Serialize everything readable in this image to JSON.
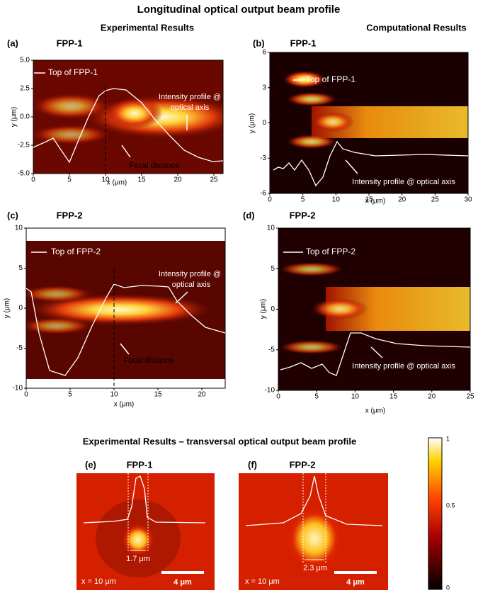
{
  "title": "Longitudinal optical output beam profile",
  "sections": {
    "experimental": "Experimental Results",
    "computational": "Computational Results",
    "transversal": "Experimental Results – transversal optical output beam profile"
  },
  "panels": [
    {
      "label": "(a)",
      "name": "FPP-1",
      "x_label": "x (μm)",
      "y_label": "y (μm)",
      "xticks": [
        "0",
        "5",
        "10",
        "15",
        "20",
        "25"
      ],
      "yticks": [
        "5.0",
        "2.5",
        "0.0",
        "-2.5",
        "-5.0"
      ],
      "annotations": [
        "Top of FPP-1",
        "Intensity profile @",
        "optical axis",
        "Focal distance"
      ]
    },
    {
      "label": "(b)",
      "name": "FPP-1",
      "x_label": "x (μm)",
      "y_label": "y (μm)",
      "xticks": [
        "0",
        "5",
        "10",
        "15",
        "20",
        "25",
        "30"
      ],
      "yticks": [
        "6",
        "3",
        "0",
        "-3",
        "-6"
      ],
      "annotations": [
        "Top of FPP-1",
        "Intensity profile @ optical axis"
      ]
    },
    {
      "label": "(c)",
      "name": "FPP-2",
      "x_label": "x (μm)",
      "y_label": "y (μm)",
      "xticks": [
        "0",
        "5",
        "10",
        "15",
        "20"
      ],
      "yticks": [
        "10",
        "5",
        "0",
        "-5",
        "-10"
      ],
      "annotations": [
        "Top of FPP-2",
        "Intensity profile @",
        "optical axis",
        "Focal distance"
      ]
    },
    {
      "label": "(d)",
      "name": "FPP-2",
      "x_label": "x (μm)",
      "y_label": "y (μm)",
      "xticks": [
        "0",
        "5",
        "10",
        "15",
        "20",
        "25"
      ],
      "yticks": [
        "10",
        "5",
        "0",
        "-5",
        "-10"
      ],
      "annotations": [
        "Top of FPP-2",
        "Intensity profile @ optical axis"
      ]
    },
    {
      "label": "(e)",
      "name": "FPP-1",
      "width": "1.7 μm",
      "position": "x = 10 μm",
      "scale": "4 μm"
    },
    {
      "label": "(f)",
      "name": "FPP-2",
      "width": "2.3 μm",
      "position": "x = 10 μm",
      "scale": "4 μm"
    }
  ],
  "colorbar": {
    "ticks": [
      "1",
      "0.5",
      "0"
    ]
  }
}
